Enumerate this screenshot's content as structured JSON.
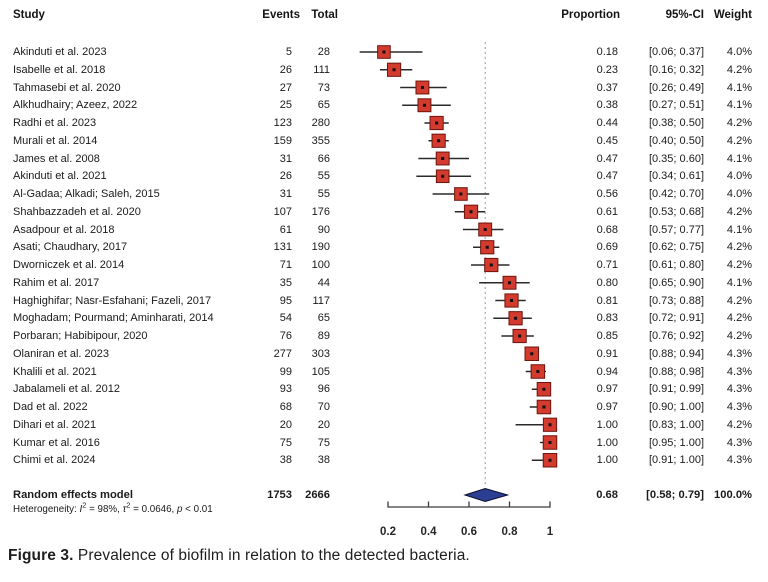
{
  "header": {
    "study": "Study",
    "events": "Events",
    "total": "Total",
    "proportion": "Proportion",
    "ci": "95%-CI",
    "weight": "Weight"
  },
  "chart_data": {
    "type": "forest",
    "title": "",
    "xlabel": "",
    "xticks": [
      "0.2",
      "0.4",
      "0.6",
      "0.8",
      "1"
    ],
    "xlim": [
      0.2,
      1
    ],
    "reference_line_x": 0.68,
    "legend": "none",
    "studies": [
      {
        "study": "Akinduti et al. 2023",
        "events": "5",
        "total": "28",
        "proportion": "0.18",
        "ci": [
          0.06,
          0.37
        ],
        "ci_label": "[0.06; 0.37]",
        "weight": "4.0%"
      },
      {
        "study": "Isabelle et al. 2018",
        "events": "26",
        "total": "111",
        "proportion": "0.23",
        "ci": [
          0.16,
          0.32
        ],
        "ci_label": "[0.16; 0.32]",
        "weight": "4.2%"
      },
      {
        "study": "Tahmasebi et al. 2020",
        "events": "27",
        "total": "73",
        "proportion": "0.37",
        "ci": [
          0.26,
          0.49
        ],
        "ci_label": "[0.26; 0.49]",
        "weight": "4.1%"
      },
      {
        "study": "Alkhudhairy; Azeez, 2022",
        "events": "25",
        "total": "65",
        "proportion": "0.38",
        "ci": [
          0.27,
          0.51
        ],
        "ci_label": "[0.27; 0.51]",
        "weight": "4.1%"
      },
      {
        "study": "Radhi et al. 2023",
        "events": "123",
        "total": "280",
        "proportion": "0.44",
        "ci": [
          0.38,
          0.5
        ],
        "ci_label": "[0.38; 0.50]",
        "weight": "4.2%"
      },
      {
        "study": "Murali et al. 2014",
        "events": "159",
        "total": "355",
        "proportion": "0.45",
        "ci": [
          0.4,
          0.5
        ],
        "ci_label": "[0.40; 0.50]",
        "weight": "4.2%"
      },
      {
        "study": "James et al. 2008",
        "events": "31",
        "total": "66",
        "proportion": "0.47",
        "ci": [
          0.35,
          0.6
        ],
        "ci_label": "[0.35; 0.60]",
        "weight": "4.1%"
      },
      {
        "study": "Akinduti et al. 2021",
        "events": "26",
        "total": "55",
        "proportion": "0.47",
        "ci": [
          0.34,
          0.61
        ],
        "ci_label": "[0.34; 0.61]",
        "weight": "4.0%"
      },
      {
        "study": "Al-Gadaa; Alkadi; Saleh, 2015",
        "events": "31",
        "total": "55",
        "proportion": "0.56",
        "ci": [
          0.42,
          0.7
        ],
        "ci_label": "[0.42; 0.70]",
        "weight": "4.0%"
      },
      {
        "study": "Shahbazzadeh et al. 2020",
        "events": "107",
        "total": "176",
        "proportion": "0.61",
        "ci": [
          0.53,
          0.68
        ],
        "ci_label": "[0.53; 0.68]",
        "weight": "4.2%"
      },
      {
        "study": "Asadpour et al. 2018",
        "events": "61",
        "total": "90",
        "proportion": "0.68",
        "ci": [
          0.57,
          0.77
        ],
        "ci_label": "[0.57; 0.77]",
        "weight": "4.1%"
      },
      {
        "study": "Asati; Chaudhary, 2017",
        "events": "131",
        "total": "190",
        "proportion": "0.69",
        "ci": [
          0.62,
          0.75
        ],
        "ci_label": "[0.62; 0.75]",
        "weight": "4.2%"
      },
      {
        "study": "Dworniczek et al. 2014",
        "events": "71",
        "total": "100",
        "proportion": "0.71",
        "ci": [
          0.61,
          0.8
        ],
        "ci_label": "[0.61; 0.80]",
        "weight": "4.2%"
      },
      {
        "study": "Rahim et al. 2017",
        "events": "35",
        "total": "44",
        "proportion": "0.80",
        "ci": [
          0.65,
          0.9
        ],
        "ci_label": "[0.65; 0.90]",
        "weight": "4.1%"
      },
      {
        "study": "Haghighifar; Nasr-Esfahani; Fazeli, 2017",
        "events": "95",
        "total": "117",
        "proportion": "0.81",
        "ci": [
          0.73,
          0.88
        ],
        "ci_label": "[0.73; 0.88]",
        "weight": "4.2%"
      },
      {
        "study": "Moghadam; Pourmand; Aminharati, 2014",
        "events": "54",
        "total": "65",
        "proportion": "0.83",
        "ci": [
          0.72,
          0.91
        ],
        "ci_label": "[0.72; 0.91]",
        "weight": "4.2%"
      },
      {
        "study": "Porbaran; Habibipour, 2020",
        "events": "76",
        "total": "89",
        "proportion": "0.85",
        "ci": [
          0.76,
          0.92
        ],
        "ci_label": "[0.76; 0.92]",
        "weight": "4.2%"
      },
      {
        "study": "Olaniran et al. 2023",
        "events": "277",
        "total": "303",
        "proportion": "0.91",
        "ci": [
          0.88,
          0.94
        ],
        "ci_label": "[0.88; 0.94]",
        "weight": "4.3%"
      },
      {
        "study": "Khalili et al. 2021",
        "events": "99",
        "total": "105",
        "proportion": "0.94",
        "ci": [
          0.88,
          0.98
        ],
        "ci_label": "[0.88; 0.98]",
        "weight": "4.3%"
      },
      {
        "study": "Jabalameli et al. 2012",
        "events": "93",
        "total": "96",
        "proportion": "0.97",
        "ci": [
          0.91,
          0.99
        ],
        "ci_label": "[0.91; 0.99]",
        "weight": "4.3%"
      },
      {
        "study": "Dad et al. 2022",
        "events": "68",
        "total": "70",
        "proportion": "0.97",
        "ci": [
          0.9,
          1.0
        ],
        "ci_label": "[0.90; 1.00]",
        "weight": "4.3%"
      },
      {
        "study": "Dihari et al. 2021",
        "events": "20",
        "total": "20",
        "proportion": "1.00",
        "ci": [
          0.83,
          1.0
        ],
        "ci_label": "[0.83; 1.00]",
        "weight": "4.2%"
      },
      {
        "study": "Kumar et al. 2016",
        "events": "75",
        "total": "75",
        "proportion": "1.00",
        "ci": [
          0.95,
          1.0
        ],
        "ci_label": "[0.95; 1.00]",
        "weight": "4.3%"
      },
      {
        "study": "Chimi et al. 2024",
        "events": "38",
        "total": "38",
        "proportion": "1.00",
        "ci": [
          0.91,
          1.0
        ],
        "ci_label": "[0.91; 1.00]",
        "weight": "4.3%"
      }
    ],
    "summary": {
      "label": "Random effects model",
      "events": "1753",
      "total": "2666",
      "proportion": "0.68",
      "ci": [
        0.58,
        0.79
      ],
      "ci_label": "[0.58; 0.79]",
      "weight": "100.0%"
    },
    "heterogeneity": {
      "pre": "Heterogeneity: ",
      "i_sym": "I",
      "i_exp": "2",
      "mid1": " = 98%, ",
      "tau_sym": "τ",
      "tau_exp": "2",
      "mid2": " = 0.0646, ",
      "p_sym": "p",
      "end": " < 0.01"
    }
  },
  "figure": {
    "caption_label": "Figure 3.",
    "caption_text": "Prevalence of biofilm in relation to the detected bacteria."
  },
  "colors": {
    "square_fill": "#d23b2e",
    "square_border": "#6e150d",
    "point_dot": "#111111",
    "ci_line": "#2a2a2a",
    "diamond_fill": "#2b3e92",
    "diamond_border": "#0d1030",
    "reference_line": "#9a9a9a",
    "axis": "#3c3c3c",
    "text": "#1b1b1b"
  }
}
